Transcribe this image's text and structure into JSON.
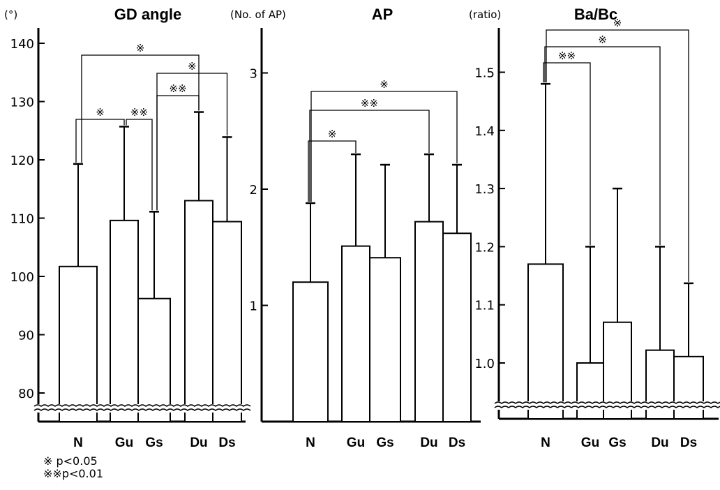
{
  "chart_data": [
    {
      "type": "bar",
      "title": "GD angle",
      "ylabel": "(°)",
      "categories": [
        "N",
        "Gu",
        "Gs",
        "Du",
        "Ds"
      ],
      "values": [
        101.7,
        109.6,
        96.2,
        113.0,
        109.4
      ],
      "error_upper": [
        119.3,
        125.7,
        111.1,
        128.2,
        123.9
      ],
      "ylim": [
        76,
        143
      ],
      "axis_break": true,
      "yticks": [
        80,
        90,
        100,
        110,
        120,
        130,
        140
      ],
      "ytick_labels": [
        "80",
        "90",
        "100",
        "110",
        "120",
        "130",
        "140"
      ],
      "significance": [
        {
          "from": 0,
          "to": 1,
          "label": "※"
        },
        {
          "from": 1,
          "to": 2,
          "label": "※※"
        },
        {
          "from": 2,
          "to": 3,
          "label": "※※"
        },
        {
          "from": 2,
          "to": 4,
          "label": "※"
        },
        {
          "from": 0,
          "to": 3,
          "label": "※"
        }
      ]
    },
    {
      "type": "bar",
      "title": "AP",
      "ylabel": "(No. of AP)",
      "categories": [
        "N",
        "Gu",
        "Gs",
        "Du",
        "Ds"
      ],
      "values": [
        1.2,
        1.51,
        1.41,
        1.72,
        1.62
      ],
      "error_upper": [
        1.88,
        2.3,
        2.21,
        2.3,
        2.21
      ],
      "ylim": [
        0,
        3.4
      ],
      "axis_break": false,
      "yticks": [
        1,
        2,
        3
      ],
      "ytick_labels": [
        "1",
        "2",
        "3"
      ],
      "significance": [
        {
          "from": 0,
          "to": 1,
          "label": "※"
        },
        {
          "from": 0,
          "to": 3,
          "label": "※※"
        },
        {
          "from": 0,
          "to": 4,
          "label": "※"
        }
      ]
    },
    {
      "type": "bar",
      "title": "Ba/Bc",
      "ylabel": "(ratio)",
      "categories": [
        "N",
        "Gu",
        "Gs",
        "Du",
        "Ds"
      ],
      "values": [
        1.17,
        1.0,
        1.07,
        1.022,
        1.011
      ],
      "error_upper": [
        1.48,
        1.2,
        1.3,
        1.2,
        1.137
      ],
      "ylim": [
        0.91,
        1.58
      ],
      "axis_break": true,
      "yticks": [
        1.0,
        1.1,
        1.2,
        1.3,
        1.4,
        1.5
      ],
      "ytick_labels": [
        "1.0",
        "1.1",
        "1.2",
        "1.3",
        "1.4",
        "1.5"
      ],
      "significance": [
        {
          "from": 0,
          "to": 1,
          "label": "※※"
        },
        {
          "from": 0,
          "to": 3,
          "label": "※"
        },
        {
          "from": 0,
          "to": 4,
          "label": "※"
        }
      ]
    }
  ],
  "legend": {
    "line1": "※ p<0.05",
    "line2": "※※p<0.01"
  }
}
